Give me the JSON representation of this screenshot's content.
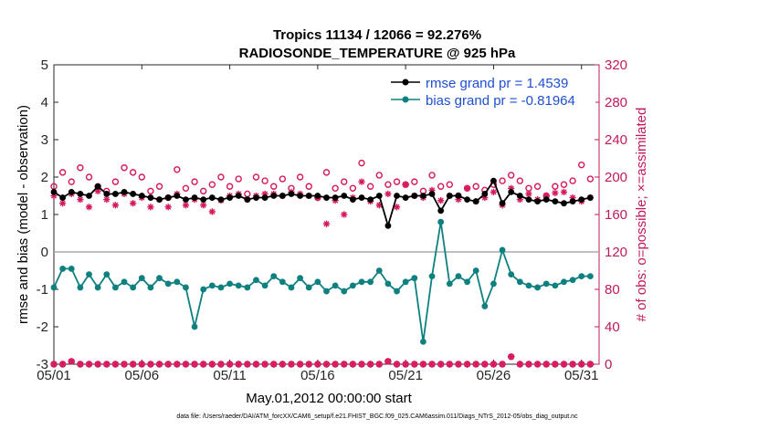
{
  "chart_data": {
    "type": "line",
    "title_line1": "Tropics 11134 / 12066 = 92.276%",
    "title_line2": "RADIOSONDE_TEMPERATURE @ 925 hPa",
    "xlabel": "May.01,2012 00:00:00 start",
    "ylabel_left": "rmse and bias (model - observation)",
    "ylabel_right": "# of obs: o=possible; ×=assimilated",
    "footnote": "data file: /Users/raeder/DAI/ATM_forcXX/CAM6_setup/f.e21.FHIST_BGC.f09_025.CAM6assim.011/Diags_NTrS_2012-05/obs_diag_output.nc",
    "x_tick_labels": [
      "05/01",
      "05/06",
      "05/11",
      "05/16",
      "05/21",
      "05/26",
      "05/31"
    ],
    "x_tick_days": [
      1,
      6,
      11,
      16,
      21,
      26,
      31
    ],
    "xlim": [
      1,
      32
    ],
    "ylim_left": [
      -3,
      5
    ],
    "y_ticks_left": [
      "-3",
      "-2",
      "-1",
      "0",
      "1",
      "2",
      "3",
      "4",
      "5"
    ],
    "ylim_right": [
      0,
      320
    ],
    "y_ticks_right": [
      "0",
      "40",
      "80",
      "120",
      "160",
      "200",
      "240",
      "280",
      "320"
    ],
    "legend": {
      "rmse_label": "rmse grand pr = 1.4539",
      "bias_label": "bias grand pr = -0.81964"
    },
    "colors": {
      "rmse": "#000000",
      "bias": "#0f8080",
      "obs": "#d6175c",
      "zero_line": "#aaaaaa",
      "right_axis": "#c2185b",
      "legend_text": "#1f4fd1"
    },
    "series": [
      {
        "name": "rmse",
        "x": [
          1.0,
          1.5,
          2.0,
          2.5,
          3.0,
          3.5,
          4.0,
          4.5,
          5.0,
          5.5,
          6.0,
          6.5,
          7.0,
          7.5,
          8.0,
          8.5,
          9.0,
          9.5,
          10.0,
          10.5,
          11.0,
          11.5,
          12.0,
          12.5,
          13.0,
          13.5,
          14.0,
          14.5,
          15.0,
          15.5,
          16.0,
          16.5,
          17.0,
          17.5,
          18.0,
          18.5,
          19.0,
          19.5,
          20.0,
          20.5,
          21.0,
          21.5,
          22.0,
          22.5,
          23.0,
          23.5,
          24.0,
          24.5,
          25.0,
          25.5,
          26.0,
          26.5,
          27.0,
          27.5,
          28.0,
          28.5,
          29.0,
          29.5,
          30.0,
          30.5,
          31.0,
          31.5
        ],
        "values": [
          1.6,
          1.45,
          1.6,
          1.55,
          1.5,
          1.75,
          1.55,
          1.55,
          1.6,
          1.55,
          1.5,
          1.45,
          1.4,
          1.45,
          1.5,
          1.4,
          1.45,
          1.4,
          1.45,
          1.4,
          1.45,
          1.5,
          1.4,
          1.45,
          1.45,
          1.5,
          1.5,
          1.55,
          1.5,
          1.5,
          1.5,
          1.45,
          1.45,
          1.5,
          1.4,
          1.45,
          1.4,
          1.5,
          0.7,
          1.5,
          1.45,
          1.5,
          1.5,
          1.55,
          1.1,
          1.5,
          1.5,
          1.4,
          1.35,
          1.55,
          1.9,
          1.3,
          1.6,
          1.5,
          1.4,
          1.35,
          1.4,
          1.35,
          1.3,
          1.35,
          1.4,
          1.45
        ]
      },
      {
        "name": "bias",
        "x": [
          1.0,
          1.5,
          2.0,
          2.5,
          3.0,
          3.5,
          4.0,
          4.5,
          5.0,
          5.5,
          6.0,
          6.5,
          7.0,
          7.5,
          8.0,
          8.5,
          9.0,
          9.5,
          10.0,
          10.5,
          11.0,
          11.5,
          12.0,
          12.5,
          13.0,
          13.5,
          14.0,
          14.5,
          15.0,
          15.5,
          16.0,
          16.5,
          17.0,
          17.5,
          18.0,
          18.5,
          19.0,
          19.5,
          20.0,
          20.5,
          21.0,
          21.5,
          22.0,
          22.5,
          23.0,
          23.5,
          24.0,
          24.5,
          25.0,
          25.5,
          26.0,
          26.5,
          27.0,
          27.5,
          28.0,
          28.5,
          29.0,
          29.5,
          30.0,
          30.5,
          31.0,
          31.5
        ],
        "values": [
          -0.95,
          -0.45,
          -0.45,
          -0.95,
          -0.6,
          -0.95,
          -0.6,
          -0.95,
          -0.8,
          -0.95,
          -0.7,
          -0.95,
          -0.7,
          -0.85,
          -0.8,
          -0.95,
          -2.0,
          -1.0,
          -0.9,
          -0.95,
          -0.85,
          -0.9,
          -0.95,
          -0.75,
          -0.9,
          -0.65,
          -0.8,
          -0.95,
          -0.7,
          -0.95,
          -0.8,
          -1.05,
          -0.9,
          -1.05,
          -0.9,
          -0.8,
          -0.8,
          -0.5,
          -0.85,
          -1.05,
          -0.8,
          -0.7,
          -2.4,
          -0.65,
          0.8,
          -0.85,
          -0.65,
          -0.8,
          -0.5,
          -1.45,
          -0.85,
          0.05,
          -0.6,
          -0.8,
          -0.9,
          -0.95,
          -0.85,
          -0.9,
          -0.8,
          -0.75,
          -0.65,
          -0.65
        ]
      },
      {
        "name": "obs_possible",
        "x": [
          1.0,
          1.5,
          2.0,
          2.5,
          3.0,
          3.5,
          4.0,
          4.5,
          5.0,
          5.5,
          6.0,
          6.5,
          7.0,
          7.5,
          8.0,
          8.5,
          9.0,
          9.5,
          10.0,
          10.5,
          11.0,
          11.5,
          12.0,
          12.5,
          13.0,
          13.5,
          14.0,
          14.5,
          15.0,
          15.5,
          16.0,
          16.5,
          17.0,
          17.5,
          18.0,
          18.5,
          19.0,
          19.5,
          20.0,
          20.5,
          21.0,
          21.5,
          22.0,
          22.5,
          23.0,
          23.5,
          24.0,
          24.5,
          25.0,
          25.5,
          26.0,
          26.5,
          27.0,
          27.5,
          28.0,
          28.5,
          29.0,
          29.5,
          30.0,
          30.5,
          31.0,
          31.5
        ],
        "values": [
          190,
          205,
          195,
          210,
          200,
          190,
          185,
          195,
          210,
          205,
          200,
          185,
          190,
          178,
          208,
          188,
          195,
          185,
          192,
          200,
          190,
          198,
          182,
          200,
          196,
          190,
          198,
          188,
          200,
          190,
          178,
          205,
          188,
          195,
          188,
          215,
          190,
          202,
          192,
          195,
          192,
          195,
          185,
          202,
          190,
          192,
          180,
          188,
          190,
          186,
          192,
          196,
          202,
          196,
          188,
          190,
          180,
          190,
          192,
          196,
          213,
          198
        ]
      },
      {
        "name": "obs_assimilated",
        "x": [
          1.0,
          1.5,
          2.0,
          2.5,
          3.0,
          3.5,
          4.0,
          4.5,
          5.0,
          5.5,
          6.0,
          6.5,
          7.0,
          7.5,
          8.0,
          8.5,
          9.0,
          9.5,
          10.0,
          10.5,
          11.0,
          11.5,
          12.0,
          12.5,
          13.0,
          13.5,
          14.0,
          14.5,
          15.0,
          15.5,
          16.0,
          16.5,
          17.0,
          17.5,
          18.0,
          18.5,
          19.0,
          19.5,
          20.0,
          20.5,
          21.0,
          21.5,
          22.0,
          22.5,
          23.0,
          23.5,
          24.0,
          24.5,
          25.0,
          25.5,
          26.0,
          26.5,
          27.0,
          27.5,
          28.0,
          28.5,
          29.0,
          29.5,
          30.0,
          30.5,
          31.0,
          31.5
        ],
        "values": [
          180,
          172,
          182,
          176,
          168,
          185,
          176,
          170,
          182,
          172,
          178,
          168,
          176,
          168,
          182,
          170,
          176,
          170,
          163,
          175,
          180,
          182,
          176,
          180,
          182,
          182,
          180,
          184,
          182,
          180,
          178,
          150,
          175,
          160,
          178,
          195,
          174,
          170,
          182,
          168,
          192,
          180,
          178,
          186,
          175,
          180,
          176,
          188,
          174,
          178,
          184,
          170,
          188,
          176,
          182,
          176,
          180,
          183,
          184,
          178,
          174,
          178
        ]
      },
      {
        "name": "obs_count_bottom",
        "x": [
          1.0,
          1.5,
          2.0,
          2.5,
          3.0,
          3.5,
          4.0,
          4.5,
          5.0,
          5.5,
          6.0,
          6.5,
          7.0,
          7.5,
          8.0,
          8.5,
          9.0,
          9.5,
          10.0,
          10.5,
          11.0,
          11.5,
          12.0,
          12.5,
          13.0,
          13.5,
          14.0,
          14.5,
          15.0,
          15.5,
          16.0,
          16.5,
          17.0,
          17.5,
          18.0,
          18.5,
          19.0,
          19.5,
          20.0,
          20.5,
          21.0,
          21.5,
          22.0,
          22.5,
          23.0,
          23.5,
          24.0,
          24.5,
          25.0,
          25.5,
          26.0,
          26.5,
          27.0,
          27.5,
          28.0,
          28.5,
          29.0,
          29.5,
          30.0,
          30.5,
          31.0,
          31.5
        ],
        "values": [
          0,
          0,
          3,
          0,
          0,
          0,
          0,
          0,
          0,
          0,
          0,
          0,
          0,
          0,
          0,
          0,
          0,
          0,
          0,
          0,
          0,
          0,
          0,
          0,
          0,
          0,
          0,
          0,
          0,
          0,
          0,
          0,
          0,
          0,
          0,
          0,
          0,
          0,
          3,
          0,
          0,
          0,
          0,
          0,
          0,
          0,
          0,
          0,
          0,
          0,
          0,
          0,
          8,
          0,
          0,
          0,
          0,
          0,
          0,
          0,
          0,
          0
        ]
      }
    ]
  }
}
